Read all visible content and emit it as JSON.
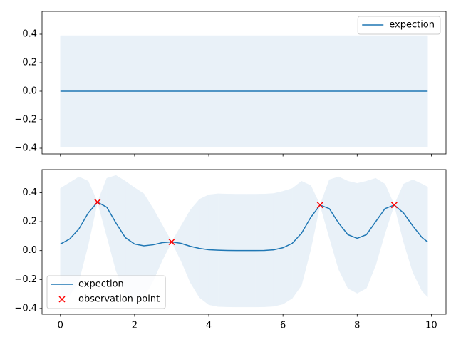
{
  "chart_data": [
    {
      "type": "line",
      "x": [
        0,
        9.9
      ],
      "series": [
        {
          "name": "expection",
          "color": "#1f77b4",
          "values": [
            0,
            0
          ]
        }
      ],
      "band": {
        "color": "#e9f1f8",
        "upper": [
          0.39,
          0.39
        ],
        "lower": [
          -0.39,
          -0.39
        ]
      },
      "xlim": [
        -0.495,
        10.395
      ],
      "ylim": [
        -0.44,
        0.56
      ],
      "xticks": [
        0,
        2,
        4,
        6,
        8,
        10
      ],
      "xtick_labels": false,
      "yticks": [
        {
          "value": -0.4,
          "label": "−0.4"
        },
        {
          "value": -0.2,
          "label": "−0.2"
        },
        {
          "value": 0,
          "label": "0.0"
        },
        {
          "value": 0.2,
          "label": "0.2"
        },
        {
          "value": 0.4,
          "label": "0.4"
        }
      ],
      "legend": "upper right"
    },
    {
      "type": "line",
      "x": [
        0,
        0.25,
        0.5,
        0.75,
        1,
        1.25,
        1.5,
        1.75,
        2,
        2.25,
        2.5,
        2.75,
        3,
        3.25,
        3.5,
        3.75,
        4,
        4.25,
        4.5,
        4.75,
        5,
        5.25,
        5.5,
        5.75,
        6,
        6.25,
        6.5,
        6.75,
        7,
        7.25,
        7.5,
        7.75,
        8,
        8.25,
        8.5,
        8.75,
        9,
        9.25,
        9.5,
        9.75,
        9.9
      ],
      "series": [
        {
          "name": "expection",
          "color": "#1f77b4",
          "values": [
            0.045,
            0.08,
            0.15,
            0.26,
            0.335,
            0.3,
            0.19,
            0.09,
            0.045,
            0.033,
            0.04,
            0.055,
            0.06,
            0.05,
            0.03,
            0.015,
            0.006,
            0.003,
            0.001,
            0,
            0,
            0,
            0.001,
            0.005,
            0.02,
            0.05,
            0.12,
            0.23,
            0.315,
            0.29,
            0.19,
            0.11,
            0.085,
            0.11,
            0.2,
            0.29,
            0.315,
            0.26,
            0.17,
            0.09,
            0.06
          ]
        }
      ],
      "band": {
        "color": "#e9f1f8",
        "upper": [
          0.43,
          0.47,
          0.51,
          0.48,
          0.335,
          0.5,
          0.52,
          0.48,
          0.435,
          0.393,
          0.29,
          0.175,
          0.06,
          0.17,
          0.28,
          0.355,
          0.386,
          0.393,
          0.391,
          0.39,
          0.39,
          0.39,
          0.391,
          0.395,
          0.41,
          0.43,
          0.48,
          0.45,
          0.315,
          0.49,
          0.51,
          0.48,
          0.465,
          0.48,
          0.5,
          0.46,
          0.315,
          0.46,
          0.49,
          0.46,
          0.44
        ],
        "lower": [
          -0.34,
          -0.31,
          -0.21,
          0.04,
          0.335,
          0.1,
          -0.14,
          -0.3,
          -0.345,
          -0.327,
          -0.21,
          -0.065,
          0.06,
          -0.07,
          -0.22,
          -0.325,
          -0.374,
          -0.387,
          -0.389,
          -0.39,
          -0.39,
          -0.39,
          -0.389,
          -0.385,
          -0.37,
          -0.33,
          -0.24,
          0.01,
          0.315,
          0.09,
          -0.13,
          -0.26,
          -0.295,
          -0.26,
          -0.1,
          0.12,
          0.315,
          0.06,
          -0.15,
          -0.28,
          -0.32
        ]
      },
      "scatter": {
        "name": "observation point",
        "color": "#ff0000",
        "x": [
          1,
          3,
          7,
          9
        ],
        "y": [
          0.335,
          0.06,
          0.315,
          0.315
        ]
      },
      "xlim": [
        -0.495,
        10.395
      ],
      "ylim": [
        -0.44,
        0.56
      ],
      "xticks": [
        0,
        2,
        4,
        6,
        8,
        10
      ],
      "xtick_labels": true,
      "yticks": [
        {
          "value": -0.4,
          "label": "−0.4"
        },
        {
          "value": -0.2,
          "label": "−0.2"
        },
        {
          "value": 0,
          "label": "0.0"
        },
        {
          "value": 0.2,
          "label": "0.2"
        },
        {
          "value": 0.4,
          "label": "0.4"
        }
      ],
      "legend": "lower left"
    }
  ]
}
